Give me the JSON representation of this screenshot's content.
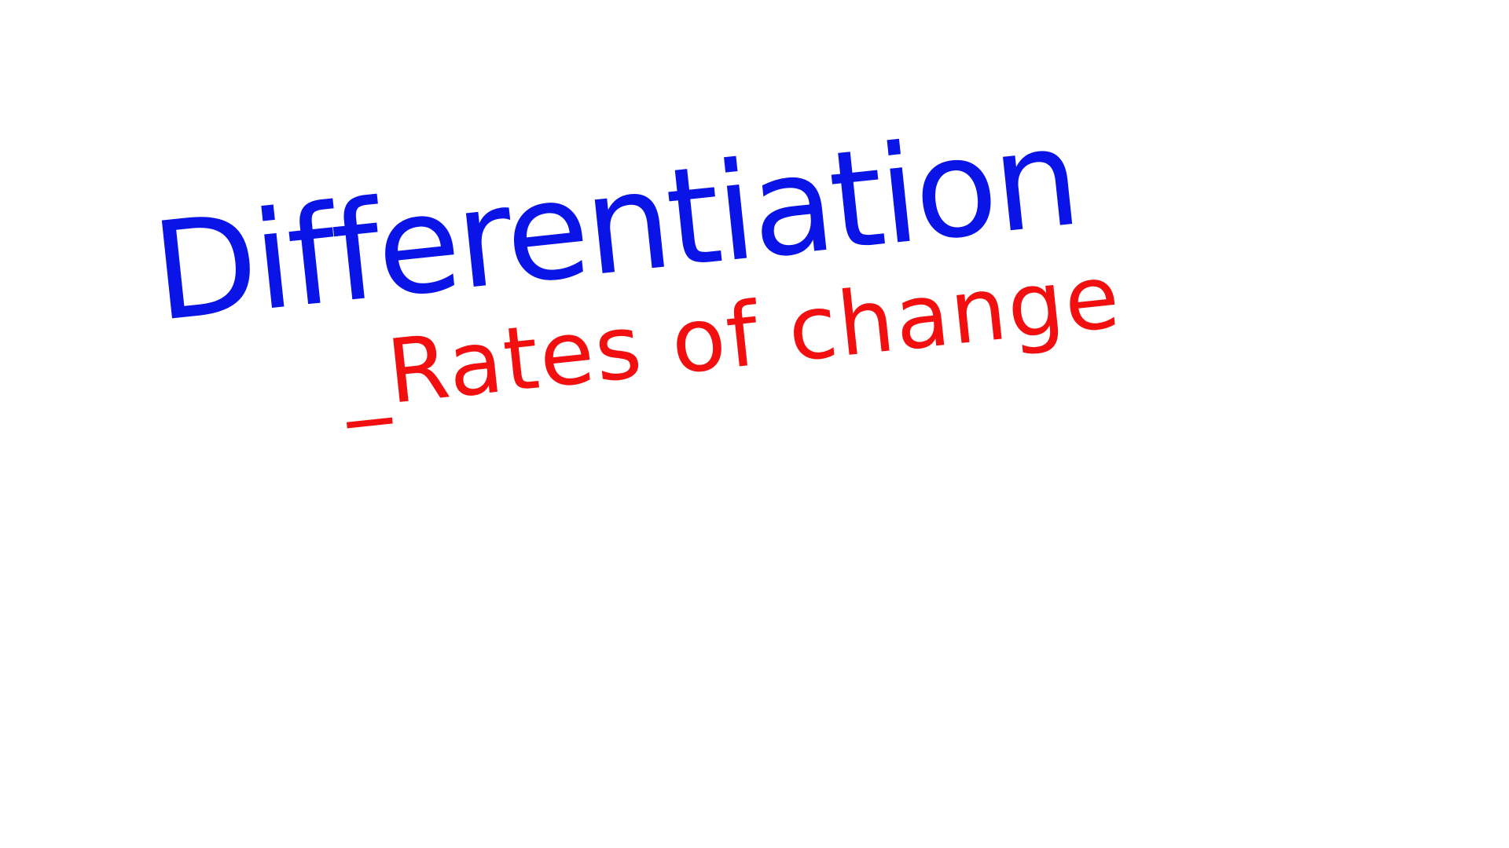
{
  "board": {
    "title": "Differentiation",
    "subtitle": "_Rates of change"
  },
  "colors": {
    "background": "#ffffff",
    "title_ink": "#0a14e6",
    "subtitle_ink": "#f20f0f"
  }
}
